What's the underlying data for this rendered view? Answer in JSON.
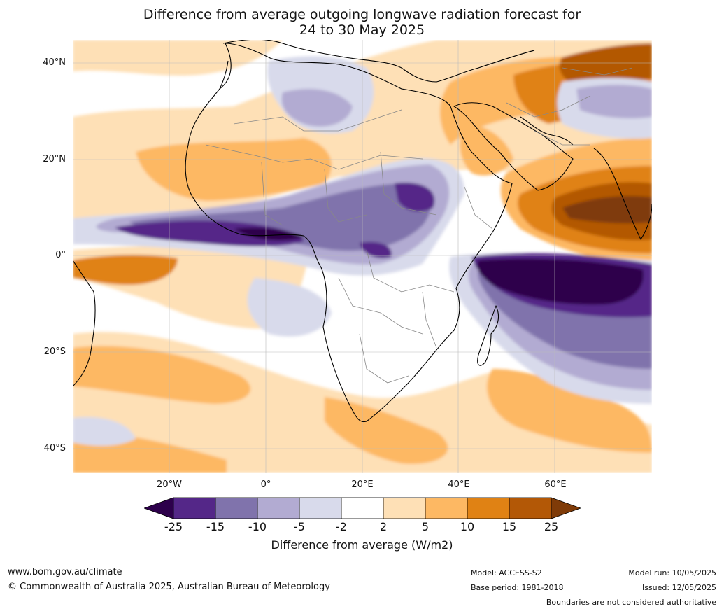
{
  "title_line1": "Difference from average outgoing longwave radiation forecast for",
  "title_line2": "24 to 30 May 2025",
  "lat_labels": [
    "40°N",
    "20°N",
    "0°",
    "20°S",
    "40°S"
  ],
  "lon_labels": [
    "20°W",
    "0°",
    "20°E",
    "40°E",
    "60°E"
  ],
  "colorbar": {
    "ticks": [
      "-25",
      "-15",
      "-10",
      "-5",
      "-2",
      "2",
      "5",
      "10",
      "15",
      "25"
    ],
    "colors": [
      "#2d004b",
      "#542788",
      "#8073ac",
      "#b2abd2",
      "#d8daeb",
      "#ffffff",
      "#fee0b6",
      "#fdb863",
      "#e08214",
      "#b35806",
      "#7f3b08"
    ],
    "title": "Difference from average (W/m2)"
  },
  "footer": {
    "website": "www.bom.gov.au/climate",
    "copyright": "© Commonwealth of Australia 2025, Australian Bureau of Meteorology",
    "model": "Model: ACCESS-S2",
    "base_period": "Base period: 1981-2018",
    "model_run": "Model run: 10/05/2025",
    "issued": "Issued: 12/05/2025",
    "disclaimer": "Boundaries are not considered authoritative"
  }
}
